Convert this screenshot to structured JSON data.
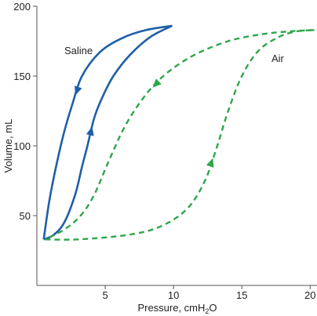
{
  "chart_data": {
    "type": "line",
    "title": "",
    "xlabel": "Pressure, cmH",
    "xlabel_sub": "2",
    "xlabel_tail": "O",
    "ylabel": "Volume, mL",
    "xlim": [
      0,
      20.5
    ],
    "ylim": [
      0,
      200
    ],
    "xticks": [
      5,
      10,
      15,
      20
    ],
    "yticks": [
      50,
      100,
      150,
      200
    ],
    "grid": false,
    "legend": "none",
    "series": [
      {
        "name": "Saline",
        "color": "#1f5fa8",
        "style": "solid",
        "inflation": [
          [
            0.5,
            33
          ],
          [
            1.2,
            36
          ],
          [
            2.0,
            45
          ],
          [
            2.8,
            65
          ],
          [
            3.3,
            85
          ],
          [
            3.7,
            100
          ],
          [
            4.2,
            120
          ],
          [
            4.8,
            135
          ],
          [
            5.6,
            150
          ],
          [
            6.8,
            165
          ],
          [
            8.3,
            178
          ],
          [
            9.9,
            186
          ]
        ],
        "deflation": [
          [
            9.9,
            186
          ],
          [
            8.0,
            183
          ],
          [
            6.2,
            177
          ],
          [
            4.6,
            167
          ],
          [
            3.3,
            150
          ],
          [
            2.6,
            130
          ],
          [
            2.0,
            110
          ],
          [
            1.4,
            85
          ],
          [
            0.9,
            60
          ],
          [
            0.5,
            33
          ]
        ]
      },
      {
        "name": "Air",
        "color": "#2ea64a",
        "style": "dashed",
        "inflation": [
          [
            0.6,
            33
          ],
          [
            3.0,
            33
          ],
          [
            6.5,
            36
          ],
          [
            9.0,
            42
          ],
          [
            11.0,
            55
          ],
          [
            12.3,
            75
          ],
          [
            13.2,
            100
          ],
          [
            14.0,
            125
          ],
          [
            15.0,
            150
          ],
          [
            16.2,
            168
          ],
          [
            17.7,
            178
          ],
          [
            19.0,
            182
          ],
          [
            20.3,
            183
          ]
        ],
        "deflation": [
          [
            20.3,
            183
          ],
          [
            18.5,
            182
          ],
          [
            16.5,
            180
          ],
          [
            14.0,
            175
          ],
          [
            11.5,
            165
          ],
          [
            9.5,
            152
          ],
          [
            8.0,
            137
          ],
          [
            6.5,
            115
          ],
          [
            5.3,
            90
          ],
          [
            4.2,
            65
          ],
          [
            3.2,
            50
          ],
          [
            2.0,
            40
          ],
          [
            0.6,
            33
          ]
        ]
      }
    ]
  }
}
